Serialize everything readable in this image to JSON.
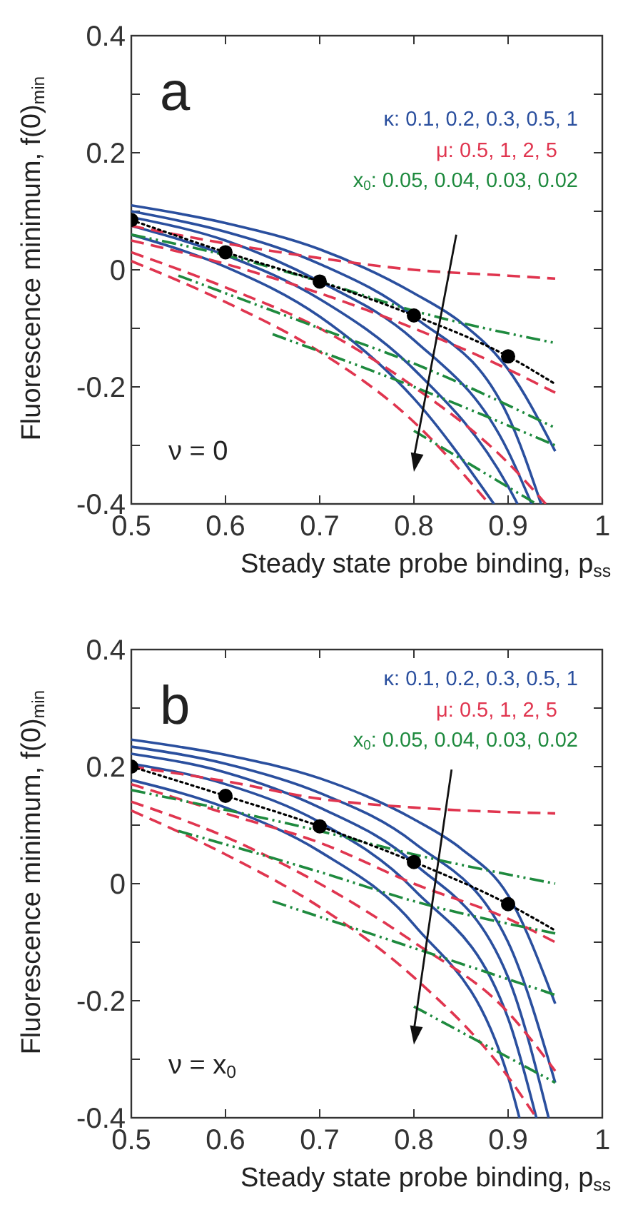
{
  "chart_data": [
    {
      "type": "line",
      "title": "a",
      "xlabel": "Steady state probe binding, p$_{ss}$",
      "ylabel": "Fluorescence minimum, f(0)$_{min}$",
      "annotations": [
        "κ: 0.1, 0.2, 0.3, 0.5, 1",
        "μ: 0.5, 1, 2, 5",
        "x$_{0}$: 0.05, 0.04, 0.03, 0.02",
        "ν = 0"
      ],
      "xlim": [
        0.5,
        1
      ],
      "xticks": [
        0.5,
        0.6,
        0.7,
        0.8,
        0.9,
        1
      ],
      "ylim": [
        -0.4,
        0.4
      ],
      "yticks": [
        -0.4,
        {
          "value": -0.3,
          "label": null
        },
        -0.2,
        {
          "value": -0.1,
          "label": null
        },
        0,
        {
          "value": 0.1,
          "label": null
        },
        0.2,
        {
          "value": 0.3,
          "label": null
        },
        0.4
      ],
      "grid": false,
      "series": [
        {
          "color": "#2a4f9e",
          "line_style": "solid",
          "x": [
            0.5,
            0.6,
            0.7,
            0.8,
            0.85,
            0.9,
            0.95
          ],
          "values": [
            0.11,
            0.08,
            0.035,
            -0.04,
            -0.09,
            -0.17,
            -0.31
          ]
        },
        {
          "color": "#2a4f9e",
          "line_style": "solid",
          "x": [
            0.5,
            0.6,
            0.7,
            0.8,
            0.9,
            0.935
          ],
          "values": [
            0.1,
            0.065,
            0.01,
            -0.08,
            -0.25,
            -0.4
          ]
        },
        {
          "color": "#2a4f9e",
          "line_style": "solid",
          "x": [
            0.5,
            0.6,
            0.7,
            0.8,
            0.9,
            0.925
          ],
          "values": [
            0.09,
            0.05,
            -0.02,
            -0.12,
            -0.31,
            -0.4
          ]
        },
        {
          "color": "#2a4f9e",
          "line_style": "solid",
          "x": [
            0.5,
            0.6,
            0.7,
            0.8,
            0.9,
            0.91
          ],
          "values": [
            0.075,
            0.025,
            -0.05,
            -0.17,
            -0.37,
            -0.4
          ]
        },
        {
          "color": "#2a4f9e",
          "line_style": "solid",
          "x": [
            0.5,
            0.6,
            0.7,
            0.8,
            0.885
          ],
          "values": [
            0.06,
            0.005,
            -0.08,
            -0.22,
            -0.4
          ]
        },
        {
          "color": "#e0354f",
          "line_style": "dashed",
          "x": [
            0.5,
            0.6,
            0.7,
            0.8,
            0.9,
            0.95
          ],
          "values": [
            0.075,
            0.045,
            0.02,
            0.0,
            -0.01,
            -0.015
          ]
        },
        {
          "color": "#e0354f",
          "line_style": "dashed",
          "x": [
            0.5,
            0.6,
            0.7,
            0.8,
            0.9,
            0.95
          ],
          "values": [
            0.05,
            0.01,
            -0.04,
            -0.1,
            -0.17,
            -0.21
          ]
        },
        {
          "color": "#e0354f",
          "line_style": "dashed",
          "x": [
            0.5,
            0.6,
            0.7,
            0.8,
            0.9,
            0.94
          ],
          "values": [
            0.03,
            -0.03,
            -0.1,
            -0.2,
            -0.33,
            -0.4
          ]
        },
        {
          "color": "#e0354f",
          "line_style": "dashed",
          "x": [
            0.5,
            0.6,
            0.7,
            0.8,
            0.88
          ],
          "values": [
            0.015,
            -0.055,
            -0.14,
            -0.26,
            -0.4
          ]
        },
        {
          "color": "#1e8a3e",
          "line_style": "dashdot",
          "x": [
            0.5,
            0.6,
            0.7,
            0.8,
            0.95
          ],
          "values": [
            0.06,
            0.025,
            -0.02,
            -0.07,
            -0.125
          ]
        },
        {
          "color": "#1e8a3e",
          "line_style": "dashdot",
          "x": [
            0.55,
            0.7,
            0.8,
            0.95
          ],
          "values": [
            -0.01,
            -0.1,
            -0.16,
            -0.27
          ]
        },
        {
          "color": "#1e8a3e",
          "line_style": "dashdot",
          "x": [
            0.65,
            0.8,
            0.95
          ],
          "values": [
            -0.11,
            -0.2,
            -0.3
          ]
        },
        {
          "color": "#1e8a3e",
          "line_style": "dashdot",
          "x": [
            0.8,
            0.93
          ],
          "values": [
            -0.275,
            -0.4
          ]
        },
        {
          "color": "#000000",
          "line_style": "dotted",
          "x": [
            0.5,
            0.6,
            0.7,
            0.8,
            0.9,
            0.95
          ],
          "values": [
            0.085,
            0.03,
            -0.02,
            -0.078,
            -0.148,
            -0.195
          ]
        },
        {
          "type": "scatter",
          "marker": "circle",
          "color": "#000000",
          "x": [
            0.5,
            0.6,
            0.7,
            0.8,
            0.9
          ],
          "values": [
            0.085,
            0.03,
            -0.02,
            -0.078,
            -0.148
          ]
        }
      ]
    },
    {
      "type": "line",
      "title": "b",
      "xlabel": "Steady state probe binding, p$_{ss}$",
      "ylabel": "Fluorescence minimum, f(0)$_{min}$",
      "annotations": [
        "κ: 0.1, 0.2, 0.3, 0.5, 1",
        "μ: 0.5, 1, 2, 5",
        "x$_{0}$: 0.05, 0.04, 0.03, 0.02",
        "ν = x$_{0}$"
      ],
      "xlim": [
        0.5,
        1
      ],
      "xticks": [
        0.5,
        0.6,
        0.7,
        0.8,
        0.9,
        1
      ],
      "ylim": [
        -0.4,
        0.4
      ],
      "yticks": [
        -0.4,
        {
          "value": -0.3,
          "label": null
        },
        -0.2,
        {
          "value": -0.1,
          "label": null
        },
        0,
        {
          "value": 0.1,
          "label": null
        },
        0.2,
        {
          "value": 0.3,
          "label": null
        },
        0.4
      ],
      "grid": false,
      "series": [
        {
          "color": "#2a4f9e",
          "line_style": "solid",
          "x": [
            0.5,
            0.6,
            0.7,
            0.8,
            0.85,
            0.9,
            0.95
          ],
          "values": [
            0.246,
            0.22,
            0.18,
            0.11,
            0.06,
            -0.02,
            -0.205
          ]
        },
        {
          "color": "#2a4f9e",
          "line_style": "solid",
          "x": [
            0.5,
            0.6,
            0.7,
            0.8,
            0.9,
            0.95
          ],
          "values": [
            0.234,
            0.205,
            0.155,
            0.07,
            -0.1,
            -0.34
          ]
        },
        {
          "color": "#2a4f9e",
          "line_style": "solid",
          "x": [
            0.5,
            0.6,
            0.7,
            0.8,
            0.9,
            0.943
          ],
          "values": [
            0.222,
            0.19,
            0.13,
            0.035,
            -0.16,
            -0.4
          ]
        },
        {
          "color": "#2a4f9e",
          "line_style": "solid",
          "x": [
            0.5,
            0.6,
            0.7,
            0.8,
            0.9,
            0.93
          ],
          "values": [
            0.205,
            0.17,
            0.105,
            -0.01,
            -0.23,
            -0.4
          ]
        },
        {
          "color": "#2a4f9e",
          "line_style": "solid",
          "x": [
            0.5,
            0.6,
            0.7,
            0.8,
            0.9,
            0.912
          ],
          "values": [
            0.177,
            0.13,
            0.055,
            -0.07,
            -0.33,
            -0.4
          ]
        },
        {
          "color": "#e0354f",
          "line_style": "dashed",
          "x": [
            0.5,
            0.6,
            0.7,
            0.8,
            0.95
          ],
          "values": [
            0.2,
            0.175,
            0.145,
            0.13,
            0.12
          ]
        },
        {
          "color": "#e0354f",
          "line_style": "dashed",
          "x": [
            0.5,
            0.6,
            0.7,
            0.8,
            0.9,
            0.95
          ],
          "values": [
            0.17,
            0.12,
            0.07,
            0.0,
            -0.06,
            -0.1
          ]
        },
        {
          "color": "#e0354f",
          "line_style": "dashed",
          "x": [
            0.5,
            0.6,
            0.7,
            0.8,
            0.9,
            0.95
          ],
          "values": [
            0.14,
            0.08,
            0.0,
            -0.1,
            -0.22,
            -0.32
          ]
        },
        {
          "color": "#e0354f",
          "line_style": "dashed",
          "x": [
            0.5,
            0.6,
            0.7,
            0.8,
            0.9,
            0.93
          ],
          "values": [
            0.125,
            0.05,
            -0.04,
            -0.16,
            -0.33,
            -0.4
          ]
        },
        {
          "color": "#1e8a3e",
          "line_style": "dashdot",
          "x": [
            0.5,
            0.7,
            0.8,
            0.95
          ],
          "values": [
            0.16,
            0.09,
            0.05,
            0.0
          ]
        },
        {
          "color": "#1e8a3e",
          "line_style": "dashdot",
          "x": [
            0.55,
            0.7,
            0.8,
            0.95
          ],
          "values": [
            0.09,
            0.02,
            -0.03,
            -0.085
          ]
        },
        {
          "color": "#1e8a3e",
          "line_style": "dashdot",
          "x": [
            0.65,
            0.8,
            0.95
          ],
          "values": [
            -0.03,
            -0.11,
            -0.19
          ]
        },
        {
          "color": "#1e8a3e",
          "line_style": "dashdot",
          "x": [
            0.8,
            0.95
          ],
          "values": [
            -0.21,
            -0.34
          ]
        },
        {
          "color": "#000000",
          "line_style": "dotted",
          "x": [
            0.5,
            0.6,
            0.7,
            0.8,
            0.9,
            0.95
          ],
          "values": [
            0.2,
            0.15,
            0.098,
            0.037,
            -0.035,
            -0.08
          ]
        },
        {
          "type": "scatter",
          "marker": "circle",
          "color": "#000000",
          "x": [
            0.5,
            0.6,
            0.7,
            0.8,
            0.9
          ],
          "values": [
            0.2,
            0.15,
            0.098,
            0.037,
            -0.035
          ]
        }
      ]
    }
  ]
}
